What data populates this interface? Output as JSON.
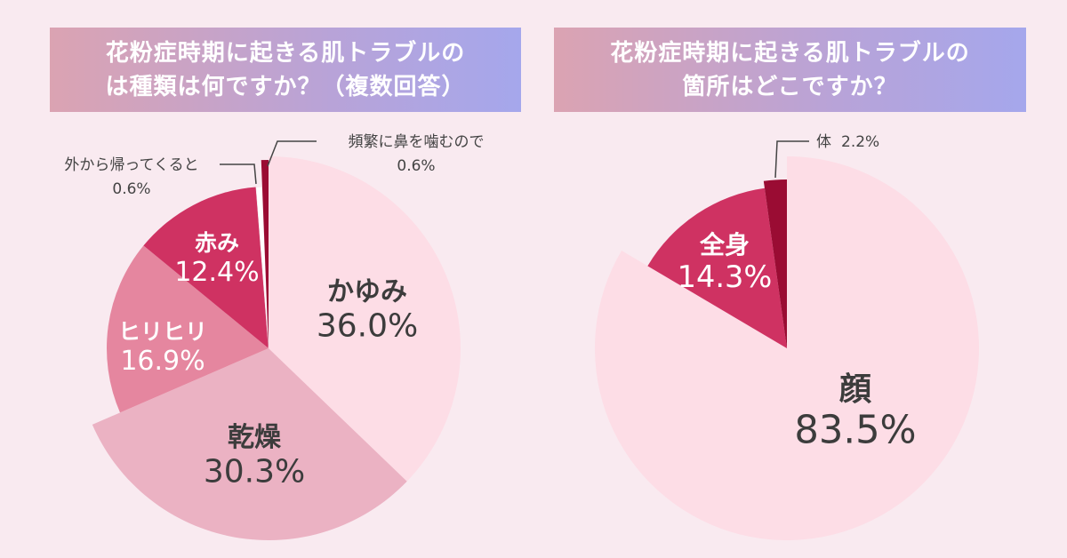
{
  "chart_data": [
    {
      "type": "pie",
      "title_lines": [
        "花粉症時期に起きる肌トラブルの",
        "は種類は何ですか？（複数回答）"
      ],
      "slices": [
        {
          "label": "かゆみ",
          "value": 36.0,
          "value_text": "36.0%",
          "color": "#fddde6"
        },
        {
          "label": "乾燥",
          "value": 30.3,
          "value_text": "30.3%",
          "color": "#ebb2c3"
        },
        {
          "label": "ヒリヒリ",
          "value": 16.9,
          "value_text": "16.9%",
          "color": "#e5869f"
        },
        {
          "label": "赤み",
          "value": 12.4,
          "value_text": "12.4%",
          "color": "#cf3262"
        },
        {
          "label": "外から帰ってくると",
          "value": 0.6,
          "value_text": "0.6%",
          "color": "#ffffff"
        },
        {
          "label": "頻繁に鼻を噛むので",
          "value": 0.6,
          "value_text": "0.6%",
          "color": "#9a0c33"
        }
      ]
    },
    {
      "type": "pie",
      "title_lines": [
        "花粉症時期に起きる肌トラブルの",
        "箇所はどこですか？"
      ],
      "slices": [
        {
          "label": "顔",
          "value": 83.5,
          "value_text": "83.5%",
          "color": "#fddde6"
        },
        {
          "label": "全身",
          "value": 14.3,
          "value_text": "14.3%",
          "color": "#cf3262"
        },
        {
          "label": "体",
          "value": 2.2,
          "value_text": "2.2%",
          "color": "#9a0c33"
        }
      ]
    }
  ]
}
